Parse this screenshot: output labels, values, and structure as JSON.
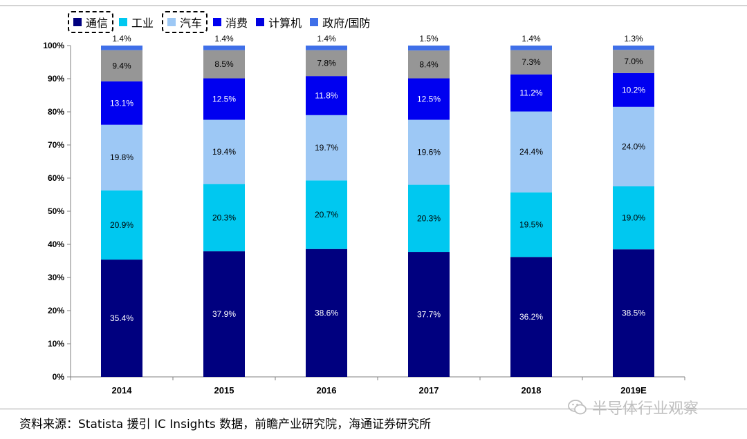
{
  "legend": [
    {
      "label": "通信",
      "color": "#00007f",
      "boxed": true
    },
    {
      "label": "工业",
      "color": "#00c8f0",
      "boxed": false
    },
    {
      "label": "汽车",
      "color": "#9dc8f5",
      "boxed": true
    },
    {
      "label": "消费",
      "color": "#0000f0",
      "boxed": false
    },
    {
      "label": "计算机",
      "color": "#0000e0",
      "boxed": false
    },
    {
      "label": "政府/国防",
      "color": "#3f6fe8",
      "boxed": false
    }
  ],
  "chart_data": {
    "type": "bar",
    "stacked": true,
    "categories": [
      "2014",
      "2015",
      "2016",
      "2017",
      "2018",
      "2019E"
    ],
    "ylim": [
      0,
      100
    ],
    "yticks": [
      "0%",
      "10%",
      "20%",
      "30%",
      "40%",
      "50%",
      "60%",
      "70%",
      "80%",
      "90%",
      "100%"
    ],
    "legend_position": "top-left",
    "grid": false,
    "segments": [
      {
        "values": [
          35.4,
          37.9,
          38.6,
          37.7,
          36.2,
          38.5
        ],
        "labels": [
          "35.4%",
          "37.9%",
          "38.6%",
          "37.7%",
          "36.2%",
          "38.5%"
        ],
        "color": "#00007f",
        "label_color": "#ffffff"
      },
      {
        "values": [
          20.9,
          20.3,
          20.7,
          20.3,
          19.5,
          19.0
        ],
        "labels": [
          "20.9%",
          "20.3%",
          "20.7%",
          "20.3%",
          "19.5%",
          "19.0%"
        ],
        "color": "#00c8f0",
        "label_color": "#000000"
      },
      {
        "values": [
          19.8,
          19.4,
          19.7,
          19.6,
          24.4,
          24.0
        ],
        "labels": [
          "19.8%",
          "19.4%",
          "19.7%",
          "19.6%",
          "24.4%",
          "24.0%"
        ],
        "color": "#9dc8f5",
        "label_color": "#000000"
      },
      {
        "values": [
          13.1,
          12.5,
          11.8,
          12.5,
          11.2,
          10.2
        ],
        "labels": [
          "13.1%",
          "12.5%",
          "11.8%",
          "12.5%",
          "11.2%",
          "10.2%"
        ],
        "color": "#0000f0",
        "label_color": "#ffffff"
      },
      {
        "values": [
          9.4,
          8.5,
          7.8,
          8.4,
          7.3,
          7.0
        ],
        "labels": [
          "9.4%",
          "8.5%",
          "7.8%",
          "8.4%",
          "7.3%",
          "7.0%"
        ],
        "color": "#969696",
        "label_color": "#000000"
      },
      {
        "values": [
          1.4,
          1.4,
          1.4,
          1.5,
          1.4,
          1.3
        ],
        "labels": [
          "1.4%",
          "1.4%",
          "1.4%",
          "1.5%",
          "1.4%",
          "1.3%"
        ],
        "color": "#3f6fe8",
        "label_color": "#000000"
      }
    ]
  },
  "source": "资料来源：Statista 援引 IC Insights 数据，前瞻产业研究院，海通证券研究所",
  "watermark": "半导体行业观察"
}
